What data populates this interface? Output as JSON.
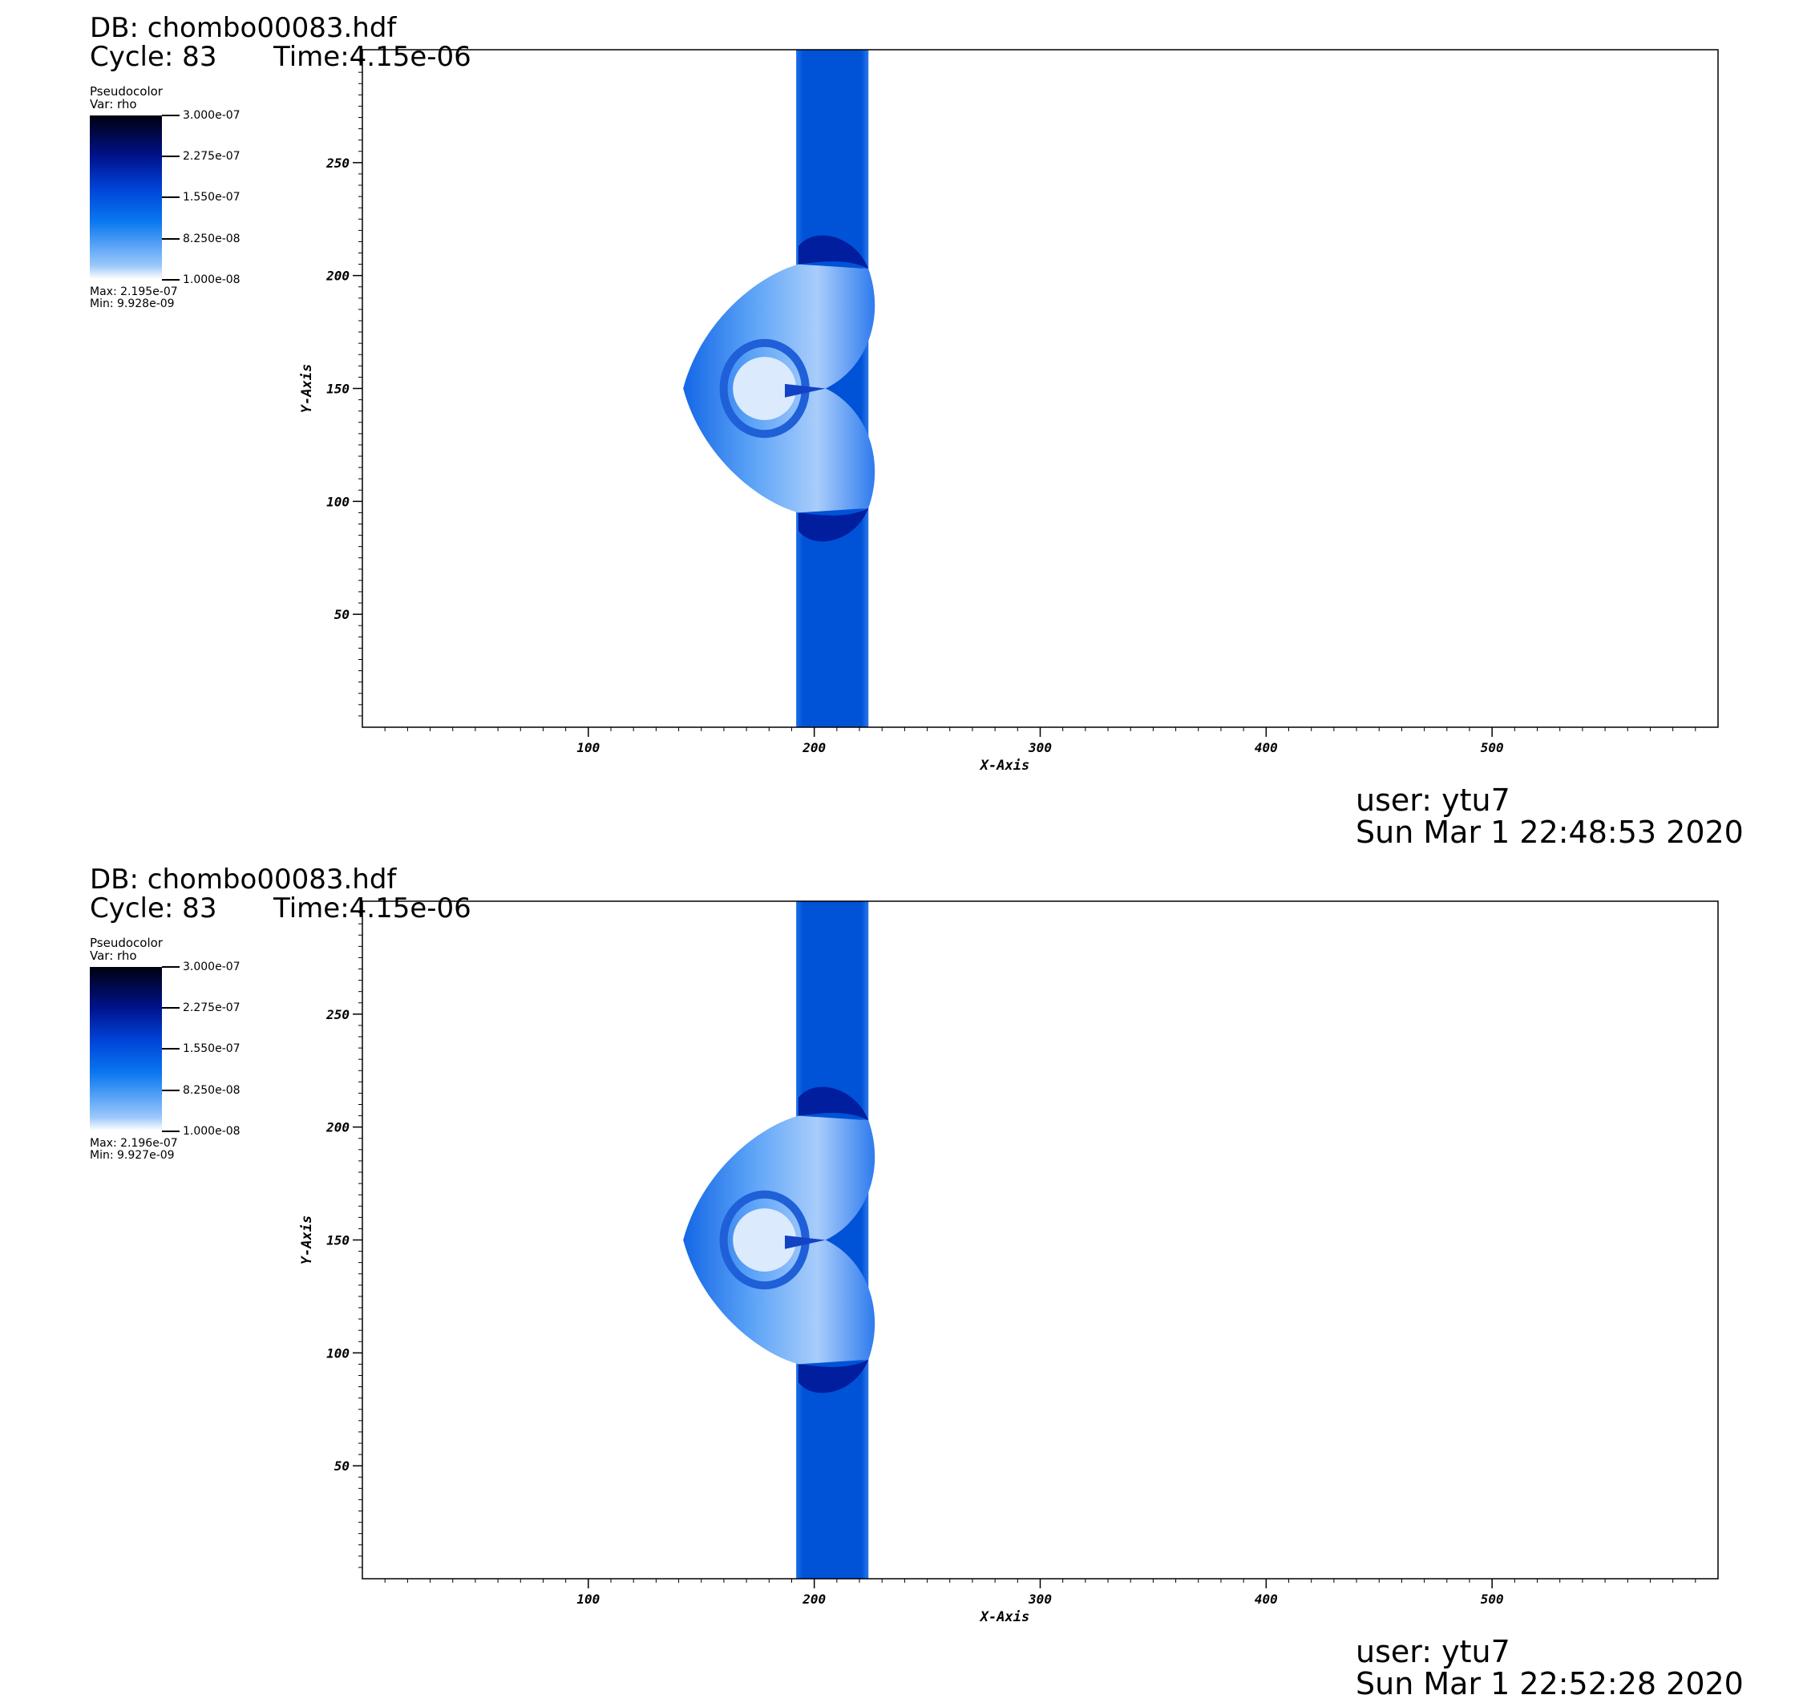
{
  "panels": [
    {
      "db": "DB: chombo00083.hdf",
      "cycle": "Cycle: 83",
      "time": "Time:4.15e-06",
      "legend": {
        "plot_type": "Pseudocolor",
        "var": "Var: rho",
        "ticks": [
          "3.000e-07",
          "2.275e-07",
          "1.550e-07",
          "8.250e-08",
          "1.000e-08"
        ],
        "max": "Max:  2.195e-07",
        "min": "Min:  9.928e-09"
      },
      "user": "user: ytu7",
      "date": "Sun Mar  1 22:48:53 2020"
    },
    {
      "db": "DB: chombo00083.hdf",
      "cycle": "Cycle: 83",
      "time": "Time:4.15e-06",
      "legend": {
        "plot_type": "Pseudocolor",
        "var": "Var: rho",
        "ticks": [
          "3.000e-07",
          "2.275e-07",
          "1.550e-07",
          "8.250e-08",
          "1.000e-08"
        ],
        "max": "Max:  2.196e-07",
        "min": "Min:  9.927e-09"
      },
      "user": "user: ytu7",
      "date": "Sun Mar  1 22:52:28 2020"
    }
  ],
  "chart_data": [
    {
      "type": "heatmap",
      "xlabel": "X-Axis",
      "ylabel": "Y-Axis",
      "xlim": [
        0,
        600
      ],
      "ylim": [
        0,
        300
      ],
      "xticks": [
        100,
        200,
        300,
        400,
        500
      ],
      "yticks": [
        50,
        100,
        150,
        200,
        250
      ],
      "colorbar": {
        "var": "rho",
        "range": [
          1e-08,
          3e-07
        ],
        "colors": [
          "#ffffff",
          "#0a78f0",
          "#00128c",
          "#000010"
        ]
      },
      "band": {
        "x": [
          192,
          224
        ],
        "value": 1.6e-07
      },
      "data_max": 2.195e-07,
      "data_min": 9.928e-09
    },
    {
      "type": "heatmap",
      "xlabel": "X-Axis",
      "ylabel": "Y-Axis",
      "xlim": [
        0,
        600
      ],
      "ylim": [
        0,
        300
      ],
      "xticks": [
        100,
        200,
        300,
        400,
        500
      ],
      "yticks": [
        50,
        100,
        150,
        200,
        250
      ],
      "colorbar": {
        "var": "rho",
        "range": [
          1e-08,
          3e-07
        ],
        "colors": [
          "#ffffff",
          "#0a78f0",
          "#00128c",
          "#000010"
        ]
      },
      "band": {
        "x": [
          192,
          224
        ],
        "value": 1.6e-07
      },
      "data_max": 2.196e-07,
      "data_min": 9.927e-09
    }
  ]
}
